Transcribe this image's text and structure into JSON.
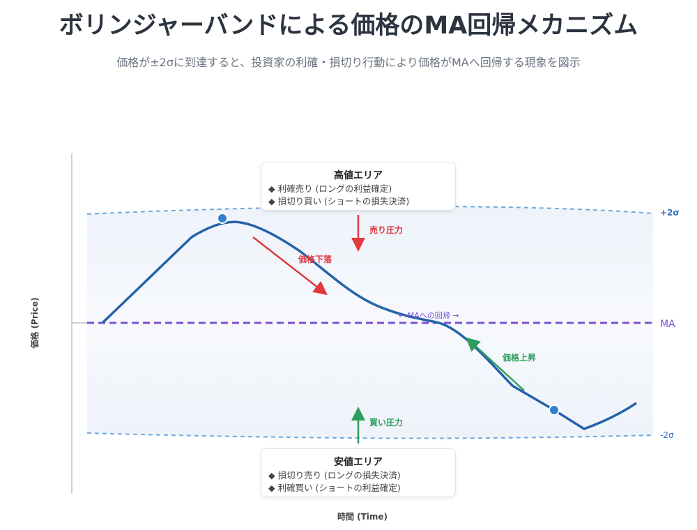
{
  "title": "ボリンジャーバンドによる価格のMA回帰メカニズム",
  "subtitle": "価格が±2σに到達すると、投資家の利確・損切り行動により価格がMAへ回帰する現象を図示",
  "axes": {
    "y_label": "価格 (Price)",
    "x_label": "時間 (Time)"
  },
  "bands": {
    "upper": "+2σ",
    "middle": "MA",
    "lower": "-2σ"
  },
  "annotations": {
    "sell_pressure": "売り圧力",
    "buy_pressure": "買い圧力",
    "price_fall": "価格下落",
    "price_rise": "価格上昇",
    "ma_return": "← MAへの回帰 →"
  },
  "high_zone": {
    "title": "高値エリア",
    "items": [
      "◆ 利確売り (ロングの利益確定)",
      "◆ 損切り買い (ショートの損失決済)"
    ]
  },
  "low_zone": {
    "title": "安値エリア",
    "items": [
      "◆ 損切り売り (ロングの損失決済)",
      "◆ 利確買い (ショートの利益確定)"
    ]
  },
  "colors": {
    "price": "#2563a8",
    "band": "#6fa8dc",
    "ma": "#7b4fd6",
    "sell": "#e0393e",
    "buy": "#2e9e5e",
    "point": "#2f80d0"
  }
}
